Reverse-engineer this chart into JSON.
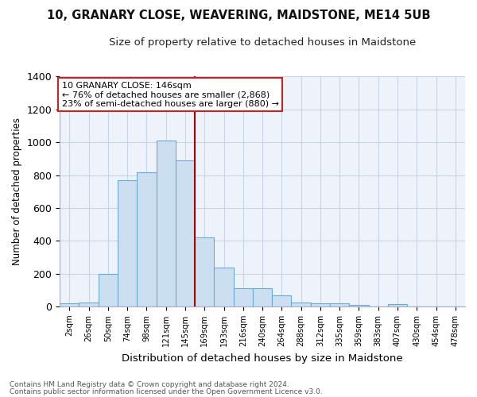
{
  "title": "10, GRANARY CLOSE, WEAVERING, MAIDSTONE, ME14 5UB",
  "subtitle": "Size of property relative to detached houses in Maidstone",
  "xlabel": "Distribution of detached houses by size in Maidstone",
  "ylabel": "Number of detached properties",
  "footnote1": "Contains HM Land Registry data © Crown copyright and database right 2024.",
  "footnote2": "Contains public sector information licensed under the Open Government Licence v3.0.",
  "annotation_line1": "10 GRANARY CLOSE: 146sqm",
  "annotation_line2": "← 76% of detached houses are smaller (2,868)",
  "annotation_line3": "23% of semi-detached houses are larger (880) →",
  "bar_labels": [
    "2sqm",
    "26sqm",
    "50sqm",
    "74sqm",
    "98sqm",
    "121sqm",
    "145sqm",
    "169sqm",
    "193sqm",
    "216sqm",
    "240sqm",
    "264sqm",
    "288sqm",
    "312sqm",
    "335sqm",
    "359sqm",
    "383sqm",
    "407sqm",
    "430sqm",
    "454sqm",
    "478sqm"
  ],
  "bar_values": [
    20,
    25,
    200,
    770,
    815,
    1010,
    890,
    420,
    235,
    110,
    110,
    70,
    25,
    20,
    20,
    10,
    0,
    15,
    0,
    0,
    0
  ],
  "bar_color": "#ccdff0",
  "bar_edge_color": "#6aaad4",
  "vline_x_index": 6,
  "vline_color": "#aa0000",
  "annotation_box_color": "#ffffff",
  "annotation_box_edge": "#cc2222",
  "ylim": [
    0,
    1400
  ],
  "yticks": [
    0,
    200,
    400,
    600,
    800,
    1000,
    1200,
    1400
  ],
  "ax_background": "#eef3fb",
  "grid_color": "#c8d4e8",
  "footnote_color": "#555555"
}
